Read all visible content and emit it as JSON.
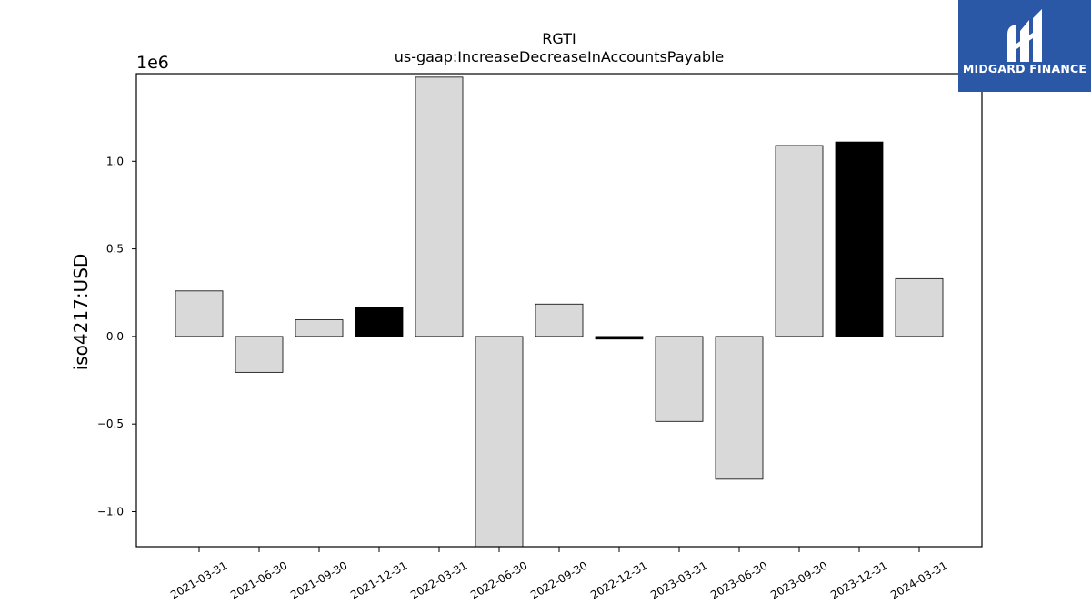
{
  "chart_data": {
    "type": "bar",
    "title": "RGTI",
    "subtitle": "us-gaap:IncreaseDecreaseInAccountsPayable",
    "ylabel": "iso4217:USD",
    "xlabel": "",
    "offset_label": "1e6",
    "categories": [
      "2021-03-31",
      "2021-06-30",
      "2021-09-30",
      "2021-12-31",
      "2022-03-31",
      "2022-06-30",
      "2022-09-30",
      "2022-12-31",
      "2023-03-31",
      "2023-06-30",
      "2023-09-30",
      "2023-12-31",
      "2024-03-31"
    ],
    "values": [
      260000,
      -205000,
      95000,
      165000,
      1480000,
      -1200000,
      185000,
      -15000,
      -485000,
      -815000,
      1090000,
      1110000,
      330000
    ],
    "highlight": [
      false,
      false,
      false,
      true,
      false,
      false,
      false,
      true,
      false,
      false,
      false,
      true,
      false
    ],
    "ylim": [
      -1.2,
      1.5
    ],
    "yticks": [
      -1.0,
      -0.5,
      0.0,
      0.5,
      1.0
    ],
    "ytick_labels": [
      "−1.0",
      "−0.5",
      "0.0",
      "0.5",
      "1.0"
    ],
    "grid": false,
    "colors": {
      "bar": "#d9d9d9",
      "highlight": "#000000",
      "edge": "#000000"
    }
  },
  "logo": {
    "text": "MIDGARD FINANCE",
    "color": "#2b57a7"
  }
}
